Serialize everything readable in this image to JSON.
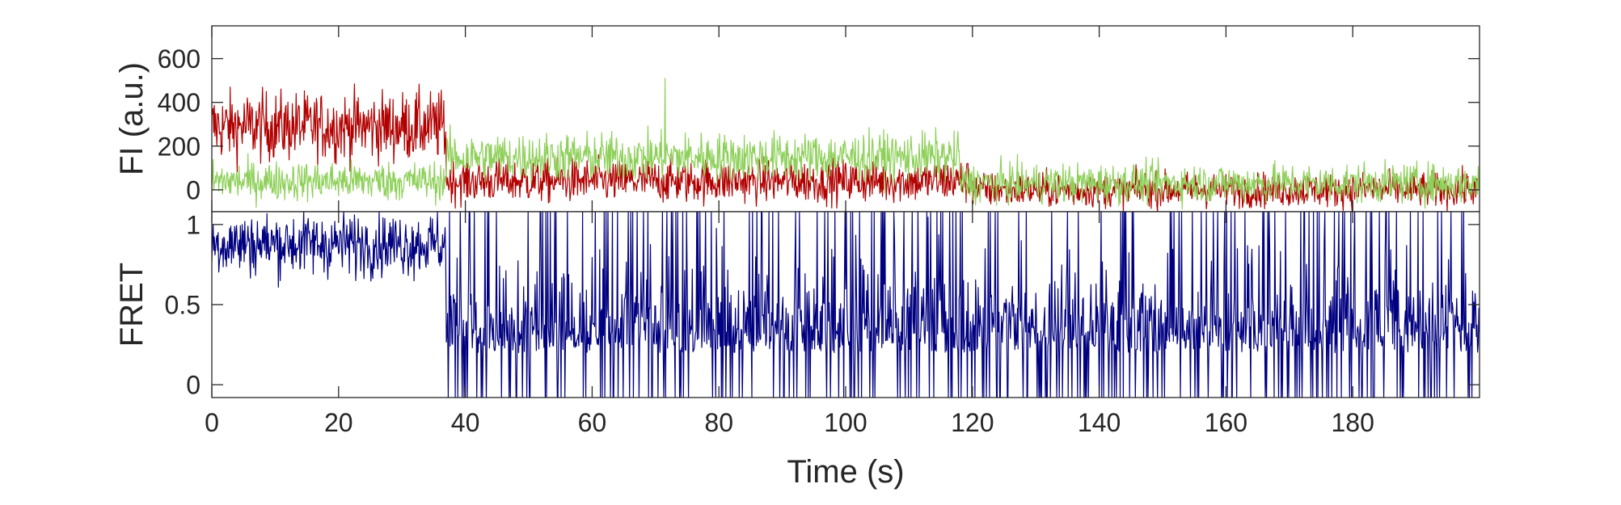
{
  "chart_data": [
    {
      "type": "line",
      "ylabel": "FI (a.u.)",
      "xlabel": "",
      "xlim": [
        0,
        200
      ],
      "ylim": [
        -100,
        750
      ],
      "xticks": [
        0,
        20,
        40,
        60,
        80,
        100,
        120,
        140,
        160,
        180
      ],
      "yticks": [
        0,
        200,
        400,
        600
      ],
      "ytick_labels": [
        "0",
        "200",
        "400",
        "600"
      ],
      "grid": false,
      "series": [
        {
          "color": "#b20000",
          "segments": [
            {
              "x_start": 0,
              "x_end": 37,
              "mean": 290,
              "noise": 80
            },
            {
              "x_start": 37,
              "x_end": 120,
              "mean": 40,
              "noise": 50
            },
            {
              "x_start": 120,
              "x_end": 200,
              "mean": 0,
              "noise": 40
            }
          ]
        },
        {
          "color": "#8ed05a",
          "segments": [
            {
              "x_start": 0,
              "x_end": 37,
              "mean": 40,
              "noise": 45
            },
            {
              "x_start": 37,
              "x_end": 118,
              "mean": 150,
              "noise": 55
            },
            {
              "x_start": 118,
              "x_end": 200,
              "mean": 30,
              "noise": 45
            }
          ],
          "spikes": [
            {
              "x": 71.5,
              "y": 510
            }
          ]
        }
      ]
    },
    {
      "type": "line",
      "ylabel": "FRET",
      "xlabel": "Time (s)",
      "xlim": [
        0,
        200
      ],
      "ylim": [
        -0.08,
        1.08
      ],
      "xticks": [
        0,
        20,
        40,
        60,
        80,
        100,
        120,
        140,
        160,
        180
      ],
      "xtick_labels": [
        "0",
        "20",
        "40",
        "60",
        "80",
        "100",
        "120",
        "140",
        "160",
        "180"
      ],
      "yticks": [
        0,
        0.5,
        1
      ],
      "ytick_labels": [
        "0",
        "0.5",
        "1"
      ],
      "grid": false,
      "series": [
        {
          "color": "#000080",
          "segments": [
            {
              "x_start": 0,
              "x_end": 37,
              "mean": 0.88,
              "noise": 0.1
            },
            {
              "x_start": 37,
              "x_end": 200,
              "mean": 0.2,
              "noise": 0.3,
              "saturating": true
            }
          ]
        }
      ]
    }
  ]
}
